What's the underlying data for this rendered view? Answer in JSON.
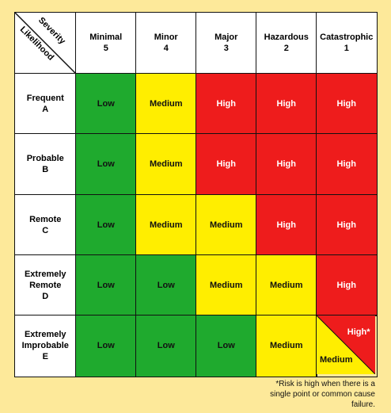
{
  "header": {
    "severity": "Severity",
    "likelihood": "Likelihood"
  },
  "columns": [
    {
      "name": "Minimal",
      "level": "5"
    },
    {
      "name": "Minor",
      "level": "4"
    },
    {
      "name": "Major",
      "level": "3"
    },
    {
      "name": "Hazardous",
      "level": "2"
    },
    {
      "name": "Catastrophic",
      "level": "1"
    }
  ],
  "rows": [
    {
      "name": "Frequent",
      "level": "A",
      "cells": [
        {
          "text": "Low",
          "color": "#1faa2e",
          "text_color": "#111"
        },
        {
          "text": "Medium",
          "color": "#ffee00",
          "text_color": "#111"
        },
        {
          "text": "High",
          "color": "#ee1c1c",
          "text_color": "#fff"
        },
        {
          "text": "High",
          "color": "#ee1c1c",
          "text_color": "#fff"
        },
        {
          "text": "High",
          "color": "#ee1c1c",
          "text_color": "#fff"
        }
      ]
    },
    {
      "name": "Probable",
      "level": "B",
      "cells": [
        {
          "text": "Low",
          "color": "#1faa2e",
          "text_color": "#111"
        },
        {
          "text": "Medium",
          "color": "#ffee00",
          "text_color": "#111"
        },
        {
          "text": "High",
          "color": "#ee1c1c",
          "text_color": "#fff"
        },
        {
          "text": "High",
          "color": "#ee1c1c",
          "text_color": "#fff"
        },
        {
          "text": "High",
          "color": "#ee1c1c",
          "text_color": "#fff"
        }
      ]
    },
    {
      "name": "Remote",
      "level": "C",
      "cells": [
        {
          "text": "Low",
          "color": "#1faa2e",
          "text_color": "#111"
        },
        {
          "text": "Medium",
          "color": "#ffee00",
          "text_color": "#111"
        },
        {
          "text": "Medium",
          "color": "#ffee00",
          "text_color": "#111"
        },
        {
          "text": "High",
          "color": "#ee1c1c",
          "text_color": "#fff"
        },
        {
          "text": "High",
          "color": "#ee1c1c",
          "text_color": "#fff"
        }
      ]
    },
    {
      "name": "Extremely Remote",
      "level": "D",
      "cells": [
        {
          "text": "Low",
          "color": "#1faa2e",
          "text_color": "#111"
        },
        {
          "text": "Low",
          "color": "#1faa2e",
          "text_color": "#111"
        },
        {
          "text": "Medium",
          "color": "#ffee00",
          "text_color": "#111"
        },
        {
          "text": "Medium",
          "color": "#ffee00",
          "text_color": "#111"
        },
        {
          "text": "High",
          "color": "#ee1c1c",
          "text_color": "#fff"
        }
      ]
    },
    {
      "name": "Extremely Improbable",
      "level": "E",
      "cells": [
        {
          "text": "Low",
          "color": "#1faa2e",
          "text_color": "#111"
        },
        {
          "text": "Low",
          "color": "#1faa2e",
          "text_color": "#111"
        },
        {
          "text": "Low",
          "color": "#1faa2e",
          "text_color": "#111"
        },
        {
          "text": "Medium",
          "color": "#ffee00",
          "text_color": "#111"
        },
        {
          "upper": {
            "text": "High*",
            "color": "#ee1c1c",
            "text_color": "#fff"
          },
          "lower": {
            "text": "Medium",
            "color": "#ffee00",
            "text_color": "#111"
          }
        }
      ]
    }
  ],
  "footnote": "*Risk is high when there is a single point or common cause failure."
}
